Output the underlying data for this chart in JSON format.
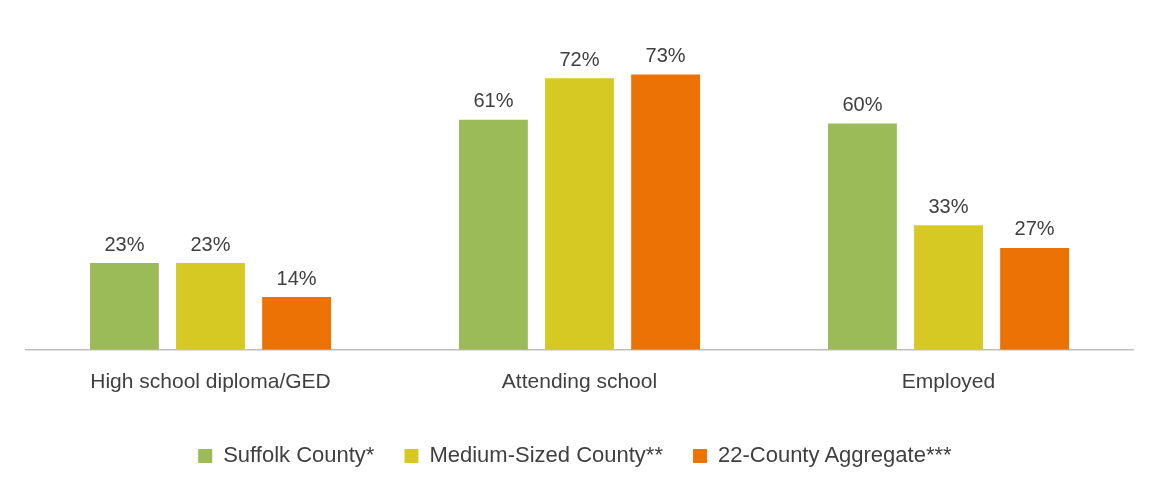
{
  "chart_data": {
    "type": "bar",
    "categories": [
      "High school diploma/GED",
      "Attending school",
      "Employed"
    ],
    "series": [
      {
        "name": "Suffolk County*",
        "color": "#9bbb59",
        "values": [
          23,
          61,
          60
        ],
        "value_labels": [
          "23%",
          "61%",
          "60%"
        ]
      },
      {
        "name": "Medium-Sized County**",
        "color": "#d6c924",
        "values": [
          23,
          72,
          33
        ],
        "value_labels": [
          "23%",
          "72%",
          "33%"
        ]
      },
      {
        "name": "22-County Aggregate***",
        "color": "#ec7205",
        "values": [
          14,
          73,
          27
        ],
        "value_labels": [
          "14%",
          "73%",
          "27%"
        ]
      }
    ],
    "relative": false,
    "grid": false,
    "legend": "bottom"
  }
}
